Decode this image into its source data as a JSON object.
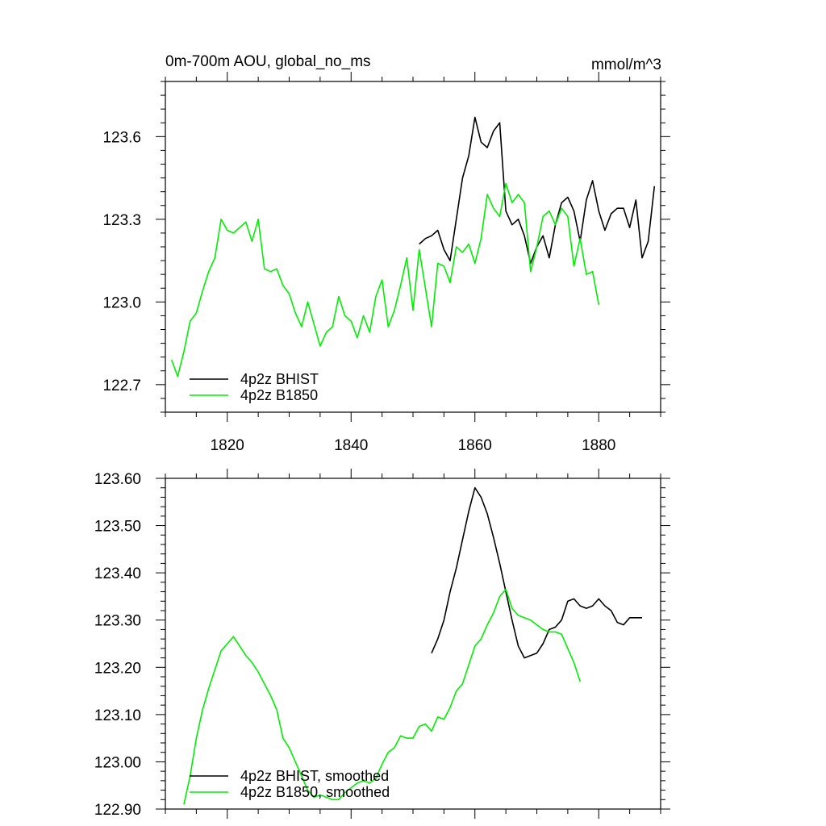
{
  "colors": {
    "bhist": "#000000",
    "b1850": "#00ee00",
    "axis": "#000000",
    "background": "#ffffff"
  },
  "chart_data": [
    {
      "type": "line",
      "title": "0m-700m AOU, global_no_ms",
      "units": "mmol/m^3",
      "xlabel": "",
      "ylabel": "",
      "xlim": [
        1810,
        1890
      ],
      "ylim": [
        122.6,
        123.8
      ],
      "x_ticks": [
        1820,
        1840,
        1860,
        1880
      ],
      "x_tick_labels": [
        "1820",
        "1840",
        "1860",
        "1880"
      ],
      "y_ticks": [
        122.7,
        123.0,
        123.3,
        123.6
      ],
      "y_tick_labels": [
        "122.7",
        "123.0",
        "123.3",
        "123.6"
      ],
      "legend_position": "bottom-left",
      "series": [
        {
          "name": "4p2z BHIST",
          "color": "#000000",
          "x": [
            1851,
            1852,
            1853,
            1854,
            1855,
            1856,
            1857,
            1858,
            1859,
            1860,
            1861,
            1862,
            1863,
            1864,
            1865,
            1866,
            1867,
            1868,
            1869,
            1870,
            1871,
            1872,
            1873,
            1874,
            1875,
            1876,
            1877,
            1878,
            1879,
            1880,
            1881,
            1882,
            1883,
            1884,
            1885,
            1886,
            1887,
            1888,
            1889
          ],
          "y": [
            123.21,
            123.23,
            123.24,
            123.26,
            123.19,
            123.15,
            123.3,
            123.45,
            123.53,
            123.67,
            123.58,
            123.56,
            123.62,
            123.65,
            123.33,
            123.28,
            123.3,
            123.24,
            123.14,
            123.2,
            123.24,
            123.16,
            123.28,
            123.36,
            123.38,
            123.33,
            123.22,
            123.37,
            123.44,
            123.33,
            123.26,
            123.32,
            123.34,
            123.34,
            123.27,
            123.37,
            123.16,
            123.22,
            123.42
          ]
        },
        {
          "name": "4p2z B1850",
          "color": "#00ee00",
          "x": [
            1811,
            1812,
            1813,
            1814,
            1815,
            1816,
            1817,
            1818,
            1819,
            1820,
            1821,
            1822,
            1823,
            1824,
            1825,
            1826,
            1827,
            1828,
            1829,
            1830,
            1831,
            1832,
            1833,
            1834,
            1835,
            1836,
            1837,
            1838,
            1839,
            1840,
            1841,
            1842,
            1843,
            1844,
            1845,
            1846,
            1847,
            1848,
            1849,
            1850,
            1851,
            1852,
            1853,
            1854,
            1855,
            1856,
            1857,
            1858,
            1859,
            1860,
            1861,
            1862,
            1863,
            1864,
            1865,
            1866,
            1867,
            1868,
            1869,
            1870,
            1871,
            1872,
            1873,
            1874,
            1875,
            1876,
            1877,
            1878,
            1879,
            1880
          ],
          "y": [
            122.79,
            122.73,
            122.82,
            122.93,
            122.96,
            123.04,
            123.11,
            123.16,
            123.3,
            123.26,
            123.25,
            123.27,
            123.29,
            123.22,
            123.3,
            123.12,
            123.11,
            123.12,
            123.06,
            123.03,
            122.96,
            122.91,
            123.0,
            122.92,
            122.84,
            122.89,
            122.91,
            123.02,
            122.95,
            122.93,
            122.87,
            122.95,
            122.89,
            123.02,
            123.08,
            122.91,
            122.97,
            123.06,
            123.16,
            122.97,
            123.19,
            123.05,
            122.91,
            123.14,
            123.13,
            123.07,
            123.2,
            123.18,
            123.21,
            123.14,
            123.23,
            123.39,
            123.34,
            123.31,
            123.43,
            123.36,
            123.39,
            123.36,
            123.11,
            123.2,
            123.31,
            123.33,
            123.28,
            123.34,
            123.31,
            123.13,
            123.23,
            123.1,
            123.11,
            122.99
          ]
        }
      ]
    },
    {
      "type": "line",
      "title": "",
      "xlabel": "",
      "ylabel": "",
      "xlim": [
        1810,
        1890
      ],
      "ylim": [
        122.9,
        123.6
      ],
      "x_ticks": [
        1820,
        1840,
        1860,
        1880
      ],
      "x_tick_labels": [],
      "y_ticks": [
        122.9,
        123.0,
        123.1,
        123.2,
        123.3,
        123.4,
        123.5,
        123.6
      ],
      "y_tick_labels": [
        "122.90",
        "123.00",
        "123.10",
        "123.20",
        "123.30",
        "123.40",
        "123.50",
        "123.60"
      ],
      "legend_position": "bottom-left",
      "series": [
        {
          "name": "4p2z BHIST, smoothed",
          "color": "#000000",
          "x": [
            1853,
            1854,
            1855,
            1856,
            1857,
            1858,
            1859,
            1860,
            1861,
            1862,
            1863,
            1864,
            1865,
            1866,
            1867,
            1868,
            1869,
            1870,
            1871,
            1872,
            1873,
            1874,
            1875,
            1876,
            1877,
            1878,
            1879,
            1880,
            1881,
            1882,
            1883,
            1884,
            1885,
            1886,
            1887
          ],
          "y": [
            123.23,
            123.26,
            123.3,
            123.36,
            123.41,
            123.47,
            123.53,
            123.58,
            123.56,
            123.525,
            123.475,
            123.42,
            123.36,
            123.3,
            123.245,
            123.22,
            123.225,
            123.23,
            123.25,
            123.28,
            123.285,
            123.3,
            123.34,
            123.345,
            123.33,
            123.325,
            123.33,
            123.345,
            123.33,
            123.32,
            123.295,
            123.29,
            123.305,
            123.305,
            123.305
          ]
        },
        {
          "name": "4p2z B1850, smoothed",
          "color": "#00ee00",
          "x": [
            1813,
            1814,
            1815,
            1816,
            1817,
            1818,
            1819,
            1820,
            1821,
            1822,
            1823,
            1824,
            1825,
            1826,
            1827,
            1828,
            1829,
            1830,
            1831,
            1832,
            1833,
            1834,
            1835,
            1836,
            1837,
            1838,
            1839,
            1840,
            1841,
            1842,
            1843,
            1844,
            1845,
            1846,
            1847,
            1848,
            1849,
            1850,
            1851,
            1852,
            1853,
            1854,
            1855,
            1856,
            1857,
            1858,
            1859,
            1860,
            1861,
            1862,
            1863,
            1864,
            1865,
            1866,
            1867,
            1868,
            1869,
            1870,
            1871,
            1872,
            1873,
            1874,
            1875,
            1876,
            1877
          ],
          "y": [
            122.91,
            122.97,
            123.05,
            123.11,
            123.155,
            123.195,
            123.235,
            123.25,
            123.265,
            123.245,
            123.225,
            123.21,
            123.19,
            123.165,
            123.14,
            123.11,
            123.05,
            123.03,
            123.0,
            122.97,
            122.94,
            122.925,
            122.93,
            122.925,
            122.92,
            122.92,
            122.935,
            122.945,
            122.955,
            122.96,
            122.955,
            122.965,
            122.995,
            123.02,
            123.03,
            123.055,
            123.05,
            123.05,
            123.075,
            123.08,
            123.065,
            123.095,
            123.09,
            123.115,
            123.15,
            123.165,
            123.205,
            123.245,
            123.26,
            123.29,
            123.315,
            123.35,
            123.365,
            123.325,
            123.31,
            123.305,
            123.3,
            123.29,
            123.28,
            123.275,
            123.275,
            123.27,
            123.24,
            123.21,
            123.17
          ]
        }
      ]
    }
  ]
}
